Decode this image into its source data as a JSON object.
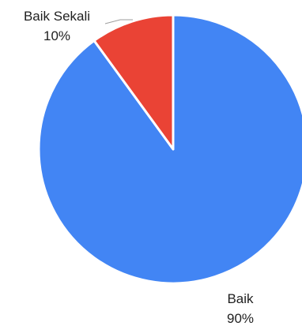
{
  "chart_data": {
    "type": "pie",
    "slices": [
      {
        "label": "Baik",
        "percent_label": "90%",
        "value": 90,
        "color": "#4285f4"
      },
      {
        "label": "Baik Sekali",
        "percent_label": "10%",
        "value": 10,
        "color": "#ea4335"
      }
    ]
  }
}
